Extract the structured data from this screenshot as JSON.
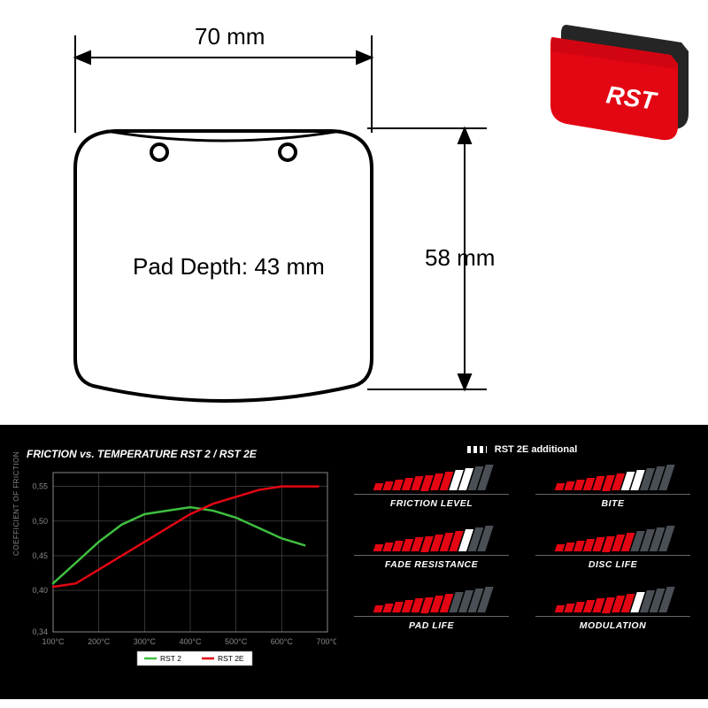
{
  "pad_diagram": {
    "width_label": "70 mm",
    "height_label": "58 mm",
    "depth_label": "Pad Depth: 43 mm",
    "stroke_color": "#000000",
    "stroke_width": 3,
    "label_fontsize": 24
  },
  "product": {
    "body_color": "#e30613",
    "backplate_color": "#252525",
    "logo_text": "RST",
    "logo_color": "#ffffff"
  },
  "chart": {
    "title": "FRICTION vs. TEMPERATURE RST 2 / RST 2E",
    "y_axis_label": "COEFFICIENT OF FRICTION",
    "background_color": "#000000",
    "grid_color": "#555555",
    "axis_color": "#888888",
    "tick_font_color": "#888888",
    "tick_fontsize": 9,
    "x_ticks": [
      "100°C",
      "200°C",
      "300°C",
      "400°C",
      "500°C",
      "600°C",
      "700°C"
    ],
    "y_ticks": [
      "0,34",
      "0,40",
      "0,45",
      "0,50",
      "0,55"
    ],
    "ylim": [
      0.34,
      0.57
    ],
    "xlim": [
      100,
      700
    ],
    "series": [
      {
        "name": "RST 2",
        "color": "#3fbf3f",
        "line_width": 2.5,
        "points": [
          [
            100,
            0.41
          ],
          [
            150,
            0.44
          ],
          [
            200,
            0.47
          ],
          [
            250,
            0.495
          ],
          [
            300,
            0.51
          ],
          [
            350,
            0.515
          ],
          [
            400,
            0.52
          ],
          [
            450,
            0.515
          ],
          [
            500,
            0.505
          ],
          [
            550,
            0.49
          ],
          [
            600,
            0.475
          ],
          [
            650,
            0.465
          ]
        ]
      },
      {
        "name": "RST 2E",
        "color": "#e30613",
        "line_width": 2.5,
        "points": [
          [
            100,
            0.405
          ],
          [
            150,
            0.41
          ],
          [
            200,
            0.43
          ],
          [
            250,
            0.45
          ],
          [
            300,
            0.47
          ],
          [
            350,
            0.49
          ],
          [
            400,
            0.51
          ],
          [
            450,
            0.525
          ],
          [
            500,
            0.535
          ],
          [
            550,
            0.545
          ],
          [
            600,
            0.55
          ],
          [
            650,
            0.55
          ],
          [
            680,
            0.55
          ]
        ]
      }
    ],
    "legend": {
      "items": [
        "RST 2",
        "RST 2E"
      ],
      "colors": [
        "#3fbf3f",
        "#e30613"
      ],
      "bg": "#ffffff"
    }
  },
  "gauges": {
    "legend_label": "RST 2E additional",
    "bar_count": 12,
    "colors": {
      "red": "#e30613",
      "white": "#ffffff",
      "grey": "#4a4e55"
    },
    "items": [
      {
        "label": "FRICTION LEVEL",
        "red": 8,
        "white": 2,
        "grey": 2
      },
      {
        "label": "BITE",
        "red": 7,
        "white": 2,
        "grey": 3
      },
      {
        "label": "FADE RESISTANCE",
        "red": 9,
        "white": 1,
        "grey": 2
      },
      {
        "label": "DISC LIFE",
        "red": 8,
        "white": 0,
        "grey": 4
      },
      {
        "label": "PAD LIFE",
        "red": 8,
        "white": 0,
        "grey": 4
      },
      {
        "label": "MODULATION",
        "red": 8,
        "white": 1,
        "grey": 3
      }
    ]
  }
}
